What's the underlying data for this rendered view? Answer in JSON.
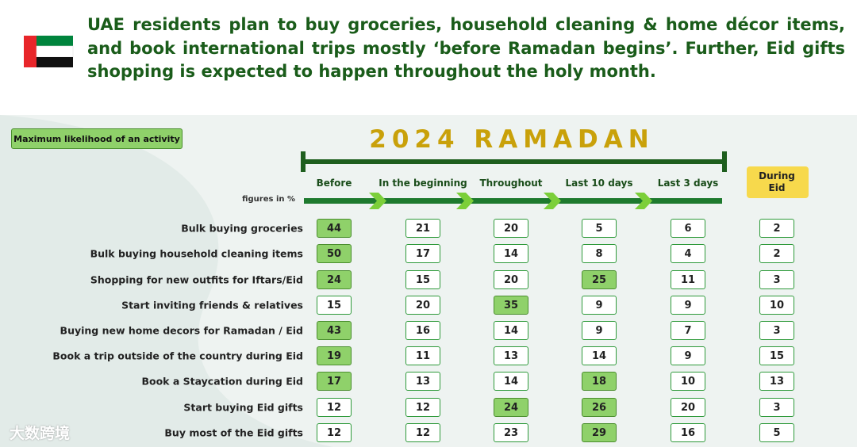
{
  "header": {
    "title": "UAE residents plan to buy groceries, household cleaning & home décor items, and book international trips mostly ‘before Ramadan begins’. Further, Eid gifts shopping is expected to happen throughout the holy month."
  },
  "legend": "Maximum likelihood of an activity",
  "timeline_title": "2024 RAMADAN",
  "unit_note": "figures in %",
  "columns": [
    "Before",
    "In the beginning",
    "Throughout",
    "Last 10 days",
    "Last 3 days",
    "During Eid"
  ],
  "table": {
    "rows": [
      {
        "label": "Bulk buying groceries",
        "values": [
          44,
          21,
          20,
          5,
          6,
          2
        ],
        "highlight": [
          0
        ]
      },
      {
        "label": "Bulk buying household cleaning items",
        "values": [
          50,
          17,
          14,
          8,
          4,
          2
        ],
        "highlight": [
          0
        ]
      },
      {
        "label": "Shopping for new outfits for Iftars/Eid",
        "values": [
          24,
          15,
          20,
          25,
          11,
          3
        ],
        "highlight": [
          0,
          3
        ]
      },
      {
        "label": "Start inviting friends & relatives",
        "values": [
          15,
          20,
          35,
          9,
          9,
          10
        ],
        "highlight": [
          2
        ]
      },
      {
        "label": "Buying new home decors for Ramadan / Eid",
        "values": [
          43,
          16,
          14,
          9,
          7,
          3
        ],
        "highlight": [
          0
        ]
      },
      {
        "label": "Book a trip outside of the country during Eid",
        "values": [
          19,
          11,
          13,
          14,
          9,
          15
        ],
        "highlight": [
          0
        ]
      },
      {
        "label": "Book a Staycation during Eid",
        "values": [
          17,
          13,
          14,
          18,
          10,
          13
        ],
        "highlight": [
          0,
          3
        ]
      },
      {
        "label": "Start buying Eid gifts",
        "values": [
          12,
          12,
          24,
          26,
          20,
          3
        ],
        "highlight": [
          2,
          3
        ]
      },
      {
        "label": "Buy most of the Eid gifts",
        "values": [
          12,
          12,
          23,
          29,
          16,
          5
        ],
        "highlight": [
          3
        ]
      }
    ]
  },
  "watermark": "大数跨境"
}
